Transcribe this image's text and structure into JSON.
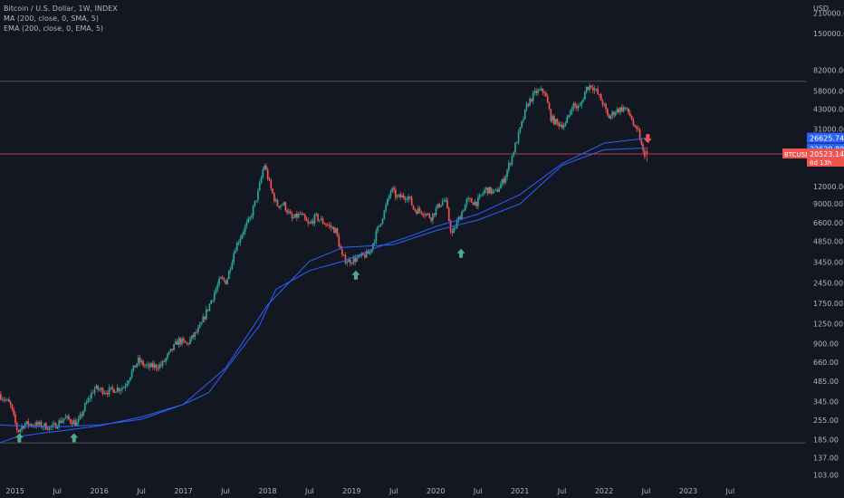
{
  "legend": [
    "Bitcoin / U.S. Dollar, 1W, INDEX",
    "MA (200, close, 0, SMA, 5)",
    "EMA (200, close, 0, EMA, 5)"
  ],
  "currency_label": "USD",
  "colors": {
    "background": "#131722",
    "up": "#26a69a",
    "down": "#ef5350",
    "ma": "#2962ff",
    "ema": "#2962ff",
    "text": "#b2b5be",
    "hline_grey": "#5d606b",
    "hline_red": "#ef5350",
    "arrow_up": "#4caf8a",
    "arrow_down": "#ef5350"
  },
  "chart_data": {
    "type": "candlestick",
    "title": "Bitcoin / U.S. Dollar, 1W, INDEX",
    "y_scale": "log",
    "ylim": [
      95,
      260000
    ],
    "xlim": [
      2014.82,
      2024.4
    ],
    "x_ticks": [
      {
        "label": "2015",
        "x": 2015.0
      },
      {
        "label": "Jul",
        "x": 2015.5
      },
      {
        "label": "2016",
        "x": 2016.0
      },
      {
        "label": "Jul",
        "x": 2016.5
      },
      {
        "label": "2017",
        "x": 2017.0
      },
      {
        "label": "Jul",
        "x": 2017.5
      },
      {
        "label": "2018",
        "x": 2018.0
      },
      {
        "label": "Jul",
        "x": 2018.5
      },
      {
        "label": "2019",
        "x": 2019.0
      },
      {
        "label": "Jul",
        "x": 2019.5
      },
      {
        "label": "2020",
        "x": 2020.0
      },
      {
        "label": "Jul",
        "x": 2020.5
      },
      {
        "label": "2021",
        "x": 2021.0
      },
      {
        "label": "Jul",
        "x": 2021.5
      },
      {
        "label": "2022",
        "x": 2022.0
      },
      {
        "label": "Jul",
        "x": 2022.5
      },
      {
        "label": "2023",
        "x": 2023.0
      },
      {
        "label": "Jul",
        "x": 2023.5
      }
    ],
    "y_ticks": [
      {
        "label": "210000.00",
        "v": 210000
      },
      {
        "label": "150000.00",
        "v": 150000
      },
      {
        "label": "82000.00",
        "v": 82000
      },
      {
        "label": "58000.00",
        "v": 58000
      },
      {
        "label": "43000.00",
        "v": 43000
      },
      {
        "label": "31000.00",
        "v": 31000
      },
      {
        "label": "12000.00",
        "v": 12000
      },
      {
        "label": "9000.00",
        "v": 9000
      },
      {
        "label": "6600.00",
        "v": 6600
      },
      {
        "label": "4850.00",
        "v": 4850
      },
      {
        "label": "3450.00",
        "v": 3450
      },
      {
        "label": "2450.00",
        "v": 2450
      },
      {
        "label": "1750.00",
        "v": 1750
      },
      {
        "label": "1250.00",
        "v": 1250
      },
      {
        "label": "900.00",
        "v": 900
      },
      {
        "label": "660.00",
        "v": 660
      },
      {
        "label": "485.00",
        "v": 485
      },
      {
        "label": "345.00",
        "v": 345
      },
      {
        "label": "255.00",
        "v": 255
      },
      {
        "label": "185.00",
        "v": 185
      },
      {
        "label": "137.00",
        "v": 137
      },
      {
        "label": "103.00",
        "v": 103
      }
    ],
    "price_anchors": [
      [
        2014.82,
        390
      ],
      [
        2014.95,
        330
      ],
      [
        2015.04,
        210
      ],
      [
        2015.12,
        240
      ],
      [
        2015.3,
        235
      ],
      [
        2015.45,
        225
      ],
      [
        2015.6,
        265
      ],
      [
        2015.75,
        240
      ],
      [
        2015.85,
        330
      ],
      [
        2015.95,
        430
      ],
      [
        2016.1,
        410
      ],
      [
        2016.3,
        440
      ],
      [
        2016.47,
        680
      ],
      [
        2016.58,
        610
      ],
      [
        2016.75,
        630
      ],
      [
        2016.95,
        950
      ],
      [
        2017.05,
        890
      ],
      [
        2017.2,
        1150
      ],
      [
        2017.35,
        1900
      ],
      [
        2017.45,
        2600
      ],
      [
        2017.52,
        2500
      ],
      [
        2017.62,
        4300
      ],
      [
        2017.72,
        5800
      ],
      [
        2017.8,
        7000
      ],
      [
        2017.9,
        11000
      ],
      [
        2017.97,
        17500
      ],
      [
        2018.05,
        11500
      ],
      [
        2018.12,
        8800
      ],
      [
        2018.2,
        9000
      ],
      [
        2018.3,
        7000
      ],
      [
        2018.4,
        7600
      ],
      [
        2018.5,
        6300
      ],
      [
        2018.58,
        7300
      ],
      [
        2018.7,
        6500
      ],
      [
        2018.82,
        5800
      ],
      [
        2018.9,
        3700
      ],
      [
        2018.97,
        3500
      ],
      [
        2019.1,
        3700
      ],
      [
        2019.22,
        4000
      ],
      [
        2019.3,
        5500
      ],
      [
        2019.4,
        8000
      ],
      [
        2019.48,
        11500
      ],
      [
        2019.55,
        10000
      ],
      [
        2019.68,
        10300
      ],
      [
        2019.75,
        8200
      ],
      [
        2019.85,
        8000
      ],
      [
        2019.95,
        7200
      ],
      [
        2020.05,
        8900
      ],
      [
        2020.12,
        9700
      ],
      [
        2020.2,
        5400
      ],
      [
        2020.28,
        7000
      ],
      [
        2020.38,
        9500
      ],
      [
        2020.5,
        9200
      ],
      [
        2020.6,
        11500
      ],
      [
        2020.72,
        10800
      ],
      [
        2020.82,
        13500
      ],
      [
        2020.9,
        18500
      ],
      [
        2021.0,
        29000
      ],
      [
        2021.1,
        47000
      ],
      [
        2021.2,
        57000
      ],
      [
        2021.3,
        58000
      ],
      [
        2021.38,
        37000
      ],
      [
        2021.45,
        34000
      ],
      [
        2021.55,
        33000
      ],
      [
        2021.63,
        46000
      ],
      [
        2021.72,
        44000
      ],
      [
        2021.8,
        61000
      ],
      [
        2021.86,
        64000
      ],
      [
        2021.92,
        57000
      ],
      [
        2022.0,
        47000
      ],
      [
        2022.06,
        37000
      ],
      [
        2022.15,
        42000
      ],
      [
        2022.25,
        44000
      ],
      [
        2022.33,
        38000
      ],
      [
        2022.38,
        30000
      ],
      [
        2022.42,
        29500
      ],
      [
        2022.47,
        21000
      ],
      [
        2022.5,
        20523
      ]
    ],
    "sma_anchors": [
      [
        2014.82,
        235
      ],
      [
        2015.0,
        232
      ],
      [
        2015.2,
        230
      ],
      [
        2015.5,
        228
      ],
      [
        2016.0,
        235
      ],
      [
        2016.5,
        258
      ],
      [
        2017.0,
        330
      ],
      [
        2017.5,
        600
      ],
      [
        2018.0,
        1700
      ],
      [
        2018.5,
        3500
      ],
      [
        2018.9,
        4400
      ],
      [
        2019.5,
        4600
      ],
      [
        2020.0,
        5800
      ],
      [
        2020.5,
        6900
      ],
      [
        2021.0,
        9000
      ],
      [
        2021.5,
        17000
      ],
      [
        2022.0,
        22000
      ],
      [
        2022.5,
        22629.89
      ]
    ],
    "ema_anchors": [
      [
        2014.82,
        175
      ],
      [
        2015.0,
        192
      ],
      [
        2015.3,
        205
      ],
      [
        2015.6,
        215
      ],
      [
        2016.0,
        232
      ],
      [
        2016.5,
        268
      ],
      [
        2017.0,
        330
      ],
      [
        2017.3,
        400
      ],
      [
        2017.6,
        700
      ],
      [
        2017.9,
        1200
      ],
      [
        2018.1,
        2200
      ],
      [
        2018.5,
        3000
      ],
      [
        2018.9,
        3500
      ],
      [
        2019.3,
        4400
      ],
      [
        2019.7,
        5300
      ],
      [
        2020.0,
        6200
      ],
      [
        2020.5,
        7600
      ],
      [
        2021.0,
        10500
      ],
      [
        2021.5,
        17500
      ],
      [
        2022.0,
        24500
      ],
      [
        2022.5,
        26625.74
      ]
    ],
    "hlines": [
      {
        "v": 68000,
        "color": "grey"
      },
      {
        "v": 20523.14,
        "color": "red"
      },
      {
        "v": 175,
        "color": "grey"
      }
    ],
    "arrows": [
      {
        "x": 2015.05,
        "v": 205,
        "dir": "up"
      },
      {
        "x": 2015.7,
        "v": 205,
        "dir": "up"
      },
      {
        "x": 2019.05,
        "v": 3000,
        "dir": "up"
      },
      {
        "x": 2020.3,
        "v": 4300,
        "dir": "up"
      },
      {
        "x": 2022.52,
        "v": 24500,
        "dir": "down"
      }
    ],
    "last_bar": {
      "open": 21500,
      "high": 23000,
      "low": 18000,
      "close": 20523.14
    }
  },
  "price_tags": {
    "ema": {
      "label": "26625.74",
      "v": 26625.74
    },
    "sma": {
      "label": "22629.89",
      "v": 22629.89
    },
    "symbol": "BTCUSD",
    "price": {
      "label": "20523.14",
      "v": 20523.14
    },
    "countdown": "6d 13h"
  }
}
